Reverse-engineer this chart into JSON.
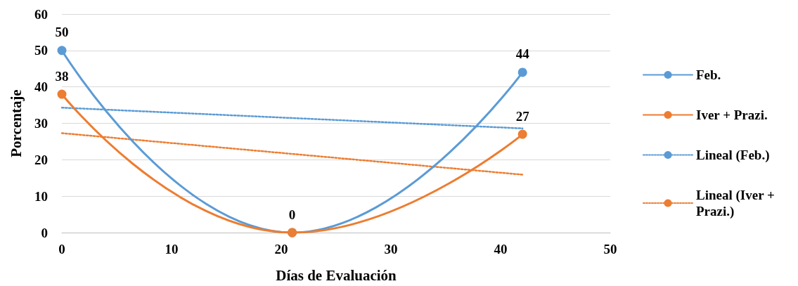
{
  "chart_data": {
    "type": "line",
    "xlabel": "Días de Evaluación",
    "ylabel": "Porcentaje",
    "xlim": [
      0,
      50
    ],
    "xticks": [
      0,
      10,
      20,
      30,
      40,
      50
    ],
    "ylim": [
      0,
      60
    ],
    "yticks": [
      0,
      10,
      20,
      30,
      40,
      50,
      60
    ],
    "grid": "y",
    "legend": "right",
    "marker": "circle",
    "line_style": "solid",
    "series": [
      {
        "name": "Feb.",
        "color": "#5b9bd5",
        "x": [
          0,
          21,
          42
        ],
        "values": [
          50,
          0,
          44
        ],
        "value_labels": [
          "50",
          "0",
          "44"
        ]
      },
      {
        "name": "Iver + Prazi.",
        "color": "#ed7d31",
        "x": [
          0,
          21,
          42
        ],
        "values": [
          38,
          0,
          27
        ],
        "value_labels": [
          "38",
          null,
          "27"
        ]
      },
      {
        "name": "Lineal (Feb.)",
        "color": "#5b9bd5",
        "x": [
          0,
          42
        ],
        "values": [
          34.3,
          28.6
        ],
        "marker": "none",
        "line_style": "dotted"
      },
      {
        "name": "Lineal (Iver + Prazi.)",
        "color": "#ed7d31",
        "x": [
          0,
          42
        ],
        "values": [
          27.3,
          15.9
        ],
        "marker": "none",
        "line_style": "dotted"
      }
    ]
  }
}
